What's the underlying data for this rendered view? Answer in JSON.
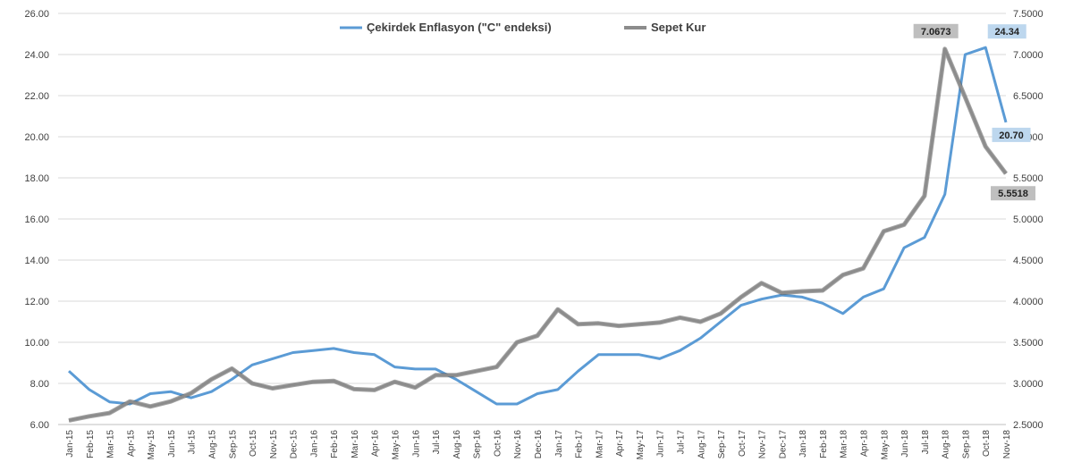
{
  "chart_data": {
    "type": "line",
    "categories": [
      "Jan-15",
      "Feb-15",
      "Mar-15",
      "Apr-15",
      "May-15",
      "Jun-15",
      "Jul-15",
      "Aug-15",
      "Sep-15",
      "Oct-15",
      "Nov-15",
      "Dec-15",
      "Jan-16",
      "Feb-16",
      "Mar-16",
      "Apr-16",
      "May-16",
      "Jun-16",
      "Jul-16",
      "Aug-16",
      "Sep-16",
      "Oct-16",
      "Nov-16",
      "Dec-16",
      "Jan-17",
      "Feb-17",
      "Mar-17",
      "Apr-17",
      "May-17",
      "Jun-17",
      "Jul-17",
      "Aug-17",
      "Sep-17",
      "Oct-17",
      "Nov-17",
      "Dec-17",
      "Jan-18",
      "Feb-18",
      "Mar-18",
      "Apr-18",
      "May-18",
      "Jun-18",
      "Jul-18",
      "Aug-18",
      "Sep-18",
      "Oct-18",
      "Nov-18"
    ],
    "series": [
      {
        "name": "Çekirdek Enflasyon (\"C\" endeksi)",
        "axis": "left",
        "color": "#5b9bd5",
        "values": [
          8.6,
          7.7,
          7.1,
          7.0,
          7.5,
          7.6,
          7.3,
          7.6,
          8.2,
          8.9,
          9.2,
          9.5,
          9.6,
          9.7,
          9.5,
          9.4,
          8.8,
          8.7,
          8.7,
          8.2,
          7.6,
          7.0,
          7.0,
          7.5,
          7.7,
          8.6,
          9.4,
          9.4,
          9.4,
          9.2,
          9.6,
          10.2,
          11.0,
          11.8,
          12.1,
          12.3,
          12.2,
          11.9,
          11.4,
          12.2,
          12.6,
          14.6,
          15.1,
          17.2,
          24.0,
          24.34,
          20.7
        ]
      },
      {
        "name": "Sepet Kur",
        "axis": "right",
        "color": "#8c8c8c",
        "values": [
          2.55,
          2.6,
          2.64,
          2.78,
          2.72,
          2.78,
          2.88,
          3.05,
          3.18,
          3.0,
          2.94,
          2.98,
          3.02,
          3.03,
          2.93,
          2.92,
          3.02,
          2.95,
          3.1,
          3.1,
          3.15,
          3.2,
          3.5,
          3.58,
          3.9,
          3.72,
          3.73,
          3.7,
          3.72,
          3.74,
          3.8,
          3.75,
          3.85,
          4.05,
          4.22,
          4.1,
          4.12,
          4.13,
          4.32,
          4.4,
          4.85,
          4.93,
          5.28,
          7.0673,
          6.48,
          5.88,
          5.5518
        ]
      }
    ],
    "ylim_left": [
      6,
      26
    ],
    "yticks_left": [
      "6.00",
      "8.00",
      "10.00",
      "12.00",
      "14.00",
      "16.00",
      "18.00",
      "20.00",
      "22.00",
      "24.00",
      "26.00"
    ],
    "ylim_right": [
      2.5,
      7.5
    ],
    "yticks_right": [
      "2.5000",
      "3.0000",
      "3.5000",
      "4.0000",
      "4.5000",
      "5.0000",
      "5.5000",
      "6.0000",
      "6.5000",
      "7.0000",
      "7.5000"
    ],
    "data_labels": [
      {
        "series": 0,
        "index": 45,
        "text": "24.34",
        "bg": "#bdd7ee"
      },
      {
        "series": 0,
        "index": 46,
        "text": "20.70",
        "bg": "#bdd7ee"
      },
      {
        "series": 1,
        "index": 43,
        "text": "7.0673",
        "bg": "#bfbfbf"
      },
      {
        "series": 1,
        "index": 46,
        "text": "5.5518",
        "bg": "#bfbfbf"
      }
    ],
    "grid": true,
    "legend": "top-center"
  }
}
